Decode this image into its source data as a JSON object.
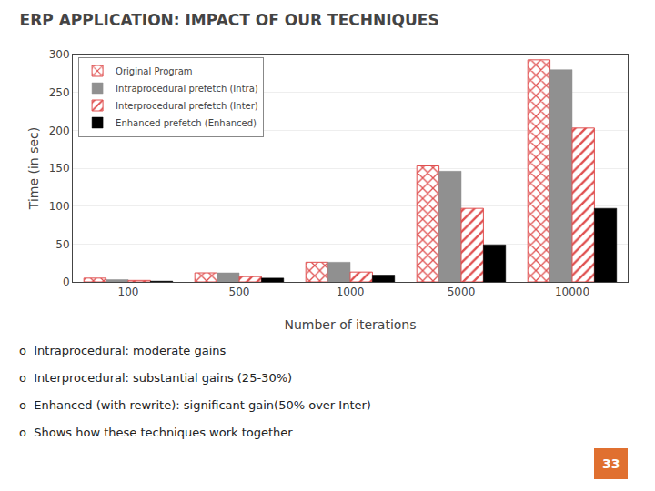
{
  "chart_data": {
    "type": "bar",
    "title": "ERP APPLICATION: IMPACT OF OUR TECHNIQUES",
    "xlabel": "Number of iterations",
    "ylabel": "Time (in sec)",
    "categories": [
      100,
      500,
      1000,
      5000,
      10000
    ],
    "series": [
      {
        "name": "Original Program",
        "color": "#e05050",
        "values": [
          5,
          12,
          26,
          153,
          293
        ]
      },
      {
        "name": "Intraprocedural prefetch (Intra)",
        "color": "#909090",
        "values": [
          3,
          12,
          26,
          146,
          280
        ]
      },
      {
        "name": "Interprocedural prefetch (Inter)",
        "color": "#e05050",
        "values": [
          2,
          7,
          13,
          97,
          203
        ]
      },
      {
        "name": "Enhanced prefetch (Enhanced)",
        "color": "#000000",
        "values": [
          1,
          5,
          9,
          49,
          97
        ]
      }
    ],
    "ylim": [
      0,
      300
    ],
    "yticks": [
      0,
      50,
      100,
      150,
      200,
      250,
      300
    ],
    "grid": true,
    "legend": "upper left",
    "annotations": [
      {
        "text": "o  Intraprocedural: moderate gains"
      },
      {
        "text": "o  Interprocedural: substantial gains (25-30%)"
      },
      {
        "text": "o  Enhanced (with rewrite): significant gain(50% over Inter)"
      },
      {
        "text": "o  Shows how these techniques work together"
      },
      {
        "text": "33",
        "color": "#e07030"
      }
    ]
  }
}
